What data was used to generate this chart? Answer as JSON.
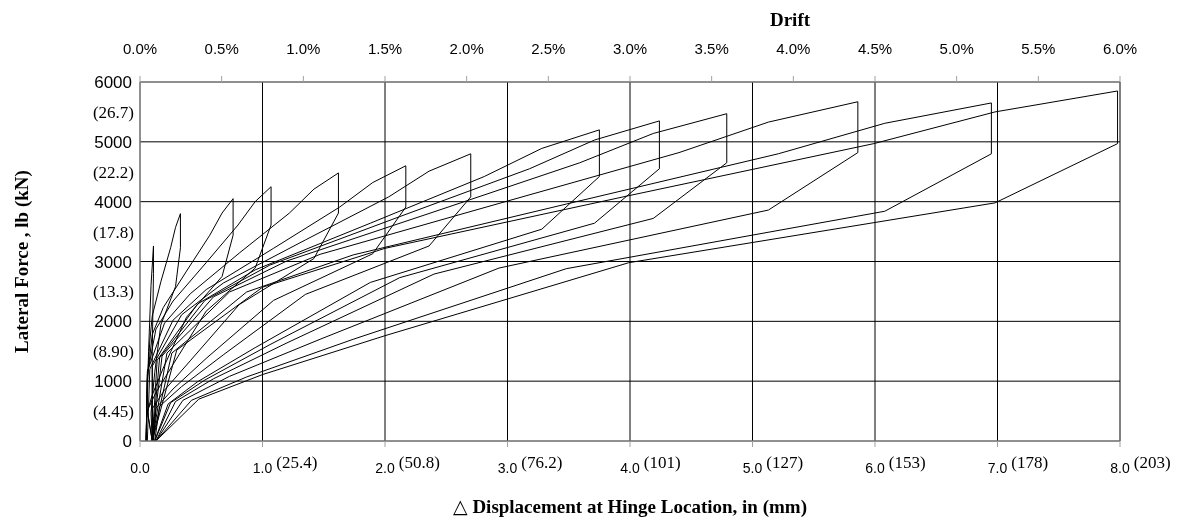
{
  "chart_data": {
    "type": "line",
    "xlabel": "△ Displacement at Hinge Location, in (mm)",
    "ylabel": "Lateral Force , lb (kN)",
    "x2label": "Drift",
    "annotations": [
      "(25.4)",
      "(50.8)",
      "(76.2)",
      "(101)",
      "(127)",
      "(153)",
      "(178)",
      "(203)"
    ],
    "xlim": [
      0,
      8
    ],
    "xticks": [
      {
        "value": 0,
        "label": "0.0"
      },
      {
        "value": 1,
        "label": "1.0"
      },
      {
        "value": 2,
        "label": "2.0"
      },
      {
        "value": 3,
        "label": "3.0"
      },
      {
        "value": 4,
        "label": "4.0"
      },
      {
        "value": 5,
        "label": "5.0"
      },
      {
        "value": 6,
        "label": "6.0"
      },
      {
        "value": 7,
        "label": "7.0"
      },
      {
        "value": 8,
        "label": "8.0"
      }
    ],
    "x2lim": [
      0,
      6
    ],
    "x2ticks": [
      {
        "value": 0,
        "label": "0.0%"
      },
      {
        "value": 0.5,
        "label": "0.5%"
      },
      {
        "value": 1,
        "label": "1.0%"
      },
      {
        "value": 1.5,
        "label": "1.5%"
      },
      {
        "value": 2,
        "label": "2.0%"
      },
      {
        "value": 2.5,
        "label": "2.5%"
      },
      {
        "value": 3,
        "label": "3.0%"
      },
      {
        "value": 3.5,
        "label": "3.5%"
      },
      {
        "value": 4,
        "label": "4.0%"
      },
      {
        "value": 4.5,
        "label": "4.5%"
      },
      {
        "value": 5,
        "label": "5.0%"
      },
      {
        "value": 5.5,
        "label": "5.5%"
      },
      {
        "value": 6,
        "label": "6.0%"
      }
    ],
    "ylim": [
      0,
      6000
    ],
    "yticks": [
      0,
      1000,
      2000,
      3000,
      4000,
      5000,
      6000
    ],
    "y2lim": [
      2.225,
      28.925
    ],
    "y2ticks": [
      {
        "value": 4.45,
        "label": "(4.45)"
      },
      {
        "value": 8.9,
        "label": "(8.90)"
      },
      {
        "value": 13.35,
        "label": "(13.3)"
      },
      {
        "value": 17.8,
        "label": "(17.8)"
      },
      {
        "value": 22.25,
        "label": "(22.2)"
      },
      {
        "value": 26.7,
        "label": "(26.7)"
      }
    ],
    "grid": true,
    "line_style": "solid",
    "series": [
      {
        "color": "#000000",
        "x": [
          0.05,
          0.07,
          0.09,
          0.11,
          0.11,
          0.1,
          0.1
        ],
        "values": [
          0,
          1500,
          2600,
          3260,
          2800,
          1500,
          0
        ]
      },
      {
        "color": "#000000",
        "x": [
          0.05,
          0.06,
          0.08,
          0.1,
          0.17,
          0.25,
          0.29,
          0.33,
          0.33,
          0.29,
          0.17,
          0.12,
          0.1,
          0.09,
          0.1
        ],
        "values": [
          0,
          990,
          1670,
          2090,
          2660,
          3230,
          3570,
          3800,
          3230,
          2580,
          1940,
          1140,
          720,
          460,
          0
        ]
      },
      {
        "color": "#000000",
        "x": [
          0.05,
          0.06,
          0.1,
          0.19,
          0.38,
          0.57,
          0.67,
          0.76,
          0.76,
          0.67,
          0.38,
          0.19,
          0.1,
          0.06,
          0.1
        ],
        "values": [
          0,
          1050,
          1780,
          2230,
          2840,
          3440,
          3810,
          4050,
          3440,
          2750,
          2070,
          1220,
          770,
          490,
          0
        ]
      },
      {
        "color": "#000000",
        "x": [
          0.05,
          0.06,
          0.13,
          0.27,
          0.54,
          0.8,
          0.94,
          1.07,
          1.07,
          0.94,
          0.54,
          0.27,
          0.13,
          0.06,
          0.1
        ],
        "values": [
          0,
          1110,
          1870,
          2340,
          2980,
          3610,
          4000,
          4250,
          3610,
          2890,
          2170,
          1280,
          810,
          510,
          0
        ]
      },
      {
        "color": "#000000",
        "x": [
          0.05,
          0.06,
          0.2,
          0.41,
          0.81,
          1.22,
          1.42,
          1.62,
          1.62,
          1.42,
          0.81,
          0.41,
          0.2,
          0.1,
          0.11
        ],
        "values": [
          0,
          1160,
          1970,
          2460,
          3140,
          3810,
          4210,
          4480,
          3810,
          3050,
          2280,
          1340,
          850,
          540,
          0
        ]
      },
      {
        "color": "#000000",
        "x": [
          0.06,
          0.08,
          0.27,
          0.54,
          1.09,
          1.63,
          1.9,
          2.17,
          2.17,
          1.9,
          1.09,
          0.54,
          0.27,
          0.13,
          0.11
        ],
        "values": [
          0,
          1200,
          2020,
          2530,
          3220,
          3910,
          4320,
          4600,
          3910,
          3130,
          2350,
          1380,
          870,
          550,
          0
        ]
      },
      {
        "color": "#000000",
        "x": [
          0.1,
          0.1,
          0.34,
          0.68,
          1.35,
          2.03,
          2.36,
          2.7,
          2.7,
          2.36,
          1.35,
          0.68,
          0.34,
          0.16,
          0.12
        ],
        "values": [
          0,
          1250,
          2110,
          2640,
          3360,
          4080,
          4510,
          4800,
          4080,
          3260,
          2450,
          1440,
          910,
          580,
          0
        ]
      },
      {
        "color": "#000000",
        "x": [
          0.1,
          0.14,
          0.47,
          0.94,
          1.88,
          2.81,
          3.28,
          3.75,
          3.75,
          3.28,
          1.88,
          0.94,
          0.47,
          0.23,
          0.12
        ],
        "values": [
          0,
          1350,
          2290,
          2860,
          3640,
          4420,
          4890,
          5200,
          4420,
          3540,
          2650,
          1560,
          990,
          620,
          0
        ]
      },
      {
        "color": "#000000",
        "x": [
          0.1,
          0.16,
          0.53,
          1.06,
          2.12,
          3.18,
          3.71,
          4.24,
          4.24,
          3.71,
          2.12,
          1.06,
          0.53,
          0.25,
          0.12
        ],
        "values": [
          0,
          1390,
          2350,
          2940,
          3750,
          4550,
          5030,
          5350,
          4550,
          3640,
          2730,
          1610,
          1020,
          640,
          0
        ]
      },
      {
        "color": "#000000",
        "x": [
          0.1,
          0.18,
          0.6,
          1.2,
          2.4,
          3.59,
          4.19,
          4.79,
          4.79,
          4.19,
          2.4,
          1.2,
          0.6,
          0.29,
          0.13
        ],
        "values": [
          0,
          1420,
          2410,
          3010,
          3830,
          4650,
          5140,
          5470,
          4650,
          3720,
          2790,
          1640,
          1040,
          660,
          0
        ]
      },
      {
        "color": "#000000",
        "x": [
          0.1,
          0.22,
          0.73,
          1.47,
          2.93,
          4.4,
          5.13,
          5.86,
          5.86,
          5.13,
          2.93,
          1.47,
          0.73,
          0.35,
          0.13
        ],
        "values": [
          0,
          1470,
          2490,
          3120,
          3970,
          4820,
          5330,
          5670,
          4820,
          3860,
          2890,
          1700,
          1080,
          680,
          0
        ]
      },
      {
        "color": "#000000",
        "x": [
          0.1,
          0.26,
          0.87,
          1.74,
          3.48,
          5.21,
          6.08,
          6.95,
          6.95,
          6.08,
          3.48,
          1.74,
          0.87,
          0.42,
          0.13
        ],
        "values": [
          0,
          1470,
          2490,
          3110,
          3960,
          4800,
          5310,
          5650,
          4800,
          3840,
          2880,
          1700,
          1070,
          680,
          0
        ]
      },
      {
        "color": "#000000",
        "x": [
          0.1,
          0.3,
          1.0,
          2.0,
          3.99,
          5.99,
          6.98,
          7.98,
          7.98,
          6.98,
          3.99,
          2.0,
          1.0,
          0.48,
          0.13
        ],
        "values": [
          0,
          1520,
          2570,
          3220,
          4100,
          4970,
          5500,
          5850,
          4970,
          3980,
          2980,
          1760,
          1110,
          700,
          0
        ]
      }
    ]
  }
}
